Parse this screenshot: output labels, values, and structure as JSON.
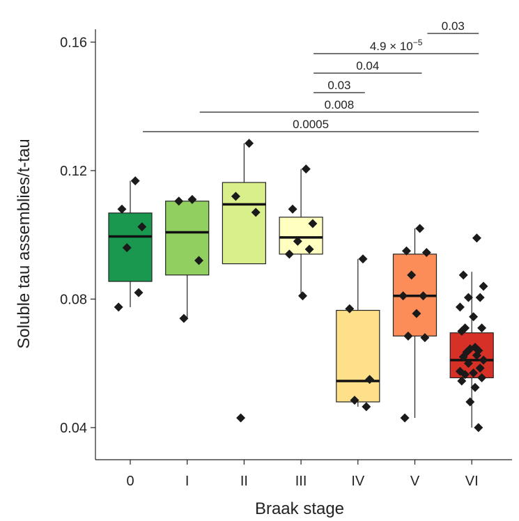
{
  "chart_data": {
    "type": "box",
    "xlabel": "Braak stage",
    "ylabel": "Soluble tau assemblies/t-tau",
    "ylim": [
      0.03,
      0.164
    ],
    "yticks": [
      0.04,
      0.08,
      0.12,
      0.16
    ],
    "ytick_labels": [
      "0.04",
      "0.08",
      "0.12",
      "0.16"
    ],
    "categories": [
      "0",
      "I",
      "II",
      "III",
      "IV",
      "V",
      "VI"
    ],
    "boxes": [
      {
        "category": "0",
        "color": "#1a9850",
        "q1": 0.0855,
        "median": 0.0995,
        "q3": 0.1068,
        "whisker_low": 0.0775,
        "whisker_high": 0.1168
      },
      {
        "category": "I",
        "color": "#91cf60",
        "q1": 0.0875,
        "median": 0.1008,
        "q3": 0.1105,
        "whisker_low": 0.074,
        "whisker_high": 0.1105
      },
      {
        "category": "II",
        "color": "#d9ef8b",
        "q1": 0.091,
        "median": 0.1095,
        "q3": 0.1163,
        "whisker_low": 0.091,
        "whisker_high": 0.1285
      },
      {
        "category": "III",
        "color": "#ffffbf",
        "q1": 0.094,
        "median": 0.0992,
        "q3": 0.1055,
        "whisker_low": 0.081,
        "whisker_high": 0.1205
      },
      {
        "category": "IV",
        "color": "#fee08b",
        "q1": 0.048,
        "median": 0.0545,
        "q3": 0.0765,
        "whisker_low": 0.0465,
        "whisker_high": 0.0925
      },
      {
        "category": "V",
        "color": "#fc8d59",
        "q1": 0.0685,
        "median": 0.081,
        "q3": 0.094,
        "whisker_low": 0.043,
        "whisker_high": 0.102
      },
      {
        "category": "VI",
        "color": "#d73027",
        "q1": 0.0555,
        "median": 0.061,
        "q3": 0.0695,
        "whisker_low": 0.04,
        "whisker_high": 0.0885
      }
    ],
    "points": [
      {
        "category": "0",
        "values": [
          0.1168,
          0.108,
          0.1025,
          0.096,
          0.082,
          0.0775
        ]
      },
      {
        "category": "I",
        "values": [
          0.111,
          0.1105,
          0.092,
          0.074
        ]
      },
      {
        "category": "II",
        "values": [
          0.1285,
          0.112,
          0.107,
          0.043
        ]
      },
      {
        "category": "III",
        "values": [
          0.1205,
          0.108,
          0.1035,
          0.098,
          0.0955,
          0.094,
          0.081
        ]
      },
      {
        "category": "IV",
        "values": [
          0.0925,
          0.077,
          0.055,
          0.0485,
          0.0465
        ]
      },
      {
        "category": "V",
        "values": [
          0.102,
          0.095,
          0.0945,
          0.0875,
          0.081,
          0.081,
          0.0755,
          0.0685,
          0.068,
          0.043
        ]
      },
      {
        "category": "VI",
        "values": [
          0.099,
          0.0875,
          0.084,
          0.0805,
          0.0805,
          0.0775,
          0.0745,
          0.071,
          0.071,
          0.07,
          0.065,
          0.0645,
          0.064,
          0.0635,
          0.0625,
          0.062,
          0.061,
          0.06,
          0.0585,
          0.0575,
          0.057,
          0.0565,
          0.0555,
          0.0545,
          0.0525,
          0.048,
          0.04
        ]
      }
    ],
    "significance": [
      {
        "from": "V",
        "to": "VI",
        "label": "0.03",
        "superscript": ""
      },
      {
        "from": "III",
        "to": "VI",
        "label": "4.9 × 10",
        "superscript": "−5"
      },
      {
        "from": "III",
        "to": "V",
        "label": "0.04",
        "superscript": ""
      },
      {
        "from": "III",
        "to": "IV",
        "label": "0.03",
        "superscript": ""
      },
      {
        "from": "I",
        "to": "VI",
        "label": "0.008",
        "superscript": ""
      },
      {
        "from": "0",
        "to": "VI",
        "label": "0.0005",
        "superscript": ""
      }
    ]
  }
}
